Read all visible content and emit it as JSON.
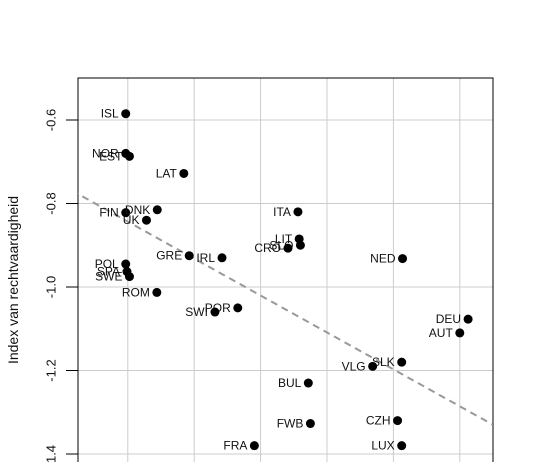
{
  "chart_data": {
    "type": "scatter",
    "title": "",
    "xlabel": "",
    "ylabel": "Index van rechtvaardigheid",
    "y_tick_labels": [
      "-0.6",
      "-0.8",
      "-1.0",
      "-1.2",
      "1.4"
    ],
    "x_range": [
      0,
      1
    ],
    "ylim": [
      -1.4,
      -0.55
    ],
    "grid": true,
    "trend_line": {
      "x0": -0.04,
      "y0": -0.755,
      "x1": 1.0,
      "y1": -1.33,
      "style": "dashed",
      "color": "#999999"
    },
    "points": [
      {
        "label": "ISL",
        "x": 0.115,
        "y": -0.585
      },
      {
        "label": "NOR",
        "x": 0.115,
        "y": -0.68
      },
      {
        "label": "EST",
        "x": 0.124,
        "y": -0.687
      },
      {
        "label": "LAT",
        "x": 0.255,
        "y": -0.728
      },
      {
        "label": "FIN",
        "x": 0.115,
        "y": -0.822
      },
      {
        "label": "DNK",
        "x": 0.191,
        "y": -0.815
      },
      {
        "label": "UK",
        "x": 0.165,
        "y": -0.84
      },
      {
        "label": "ITA",
        "x": 0.53,
        "y": -0.82
      },
      {
        "label": "LIT",
        "x": 0.533,
        "y": -0.885
      },
      {
        "label": "SLO",
        "x": 0.536,
        "y": -0.9
      },
      {
        "label": "CRO",
        "x": 0.506,
        "y": -0.907
      },
      {
        "label": "GRE",
        "x": 0.268,
        "y": -0.925
      },
      {
        "label": "IRL",
        "x": 0.347,
        "y": -0.93
      },
      {
        "label": "NED",
        "x": 0.782,
        "y": -0.932
      },
      {
        "label": "POL",
        "x": 0.115,
        "y": -0.945
      },
      {
        "label": "SPA",
        "x": 0.118,
        "y": -0.963
      },
      {
        "label": "SWE",
        "x": 0.124,
        "y": -0.975
      },
      {
        "label": "ROM",
        "x": 0.19,
        "y": -1.013
      },
      {
        "label": "POR",
        "x": 0.385,
        "y": -1.05
      },
      {
        "label": "SWI",
        "x": 0.33,
        "y": -1.06
      },
      {
        "label": "DEU",
        "x": 0.94,
        "y": -1.077
      },
      {
        "label": "AUT",
        "x": 0.92,
        "y": -1.11
      },
      {
        "label": "SLK",
        "x": 0.78,
        "y": -1.18
      },
      {
        "label": "VLG",
        "x": 0.71,
        "y": -1.19
      },
      {
        "label": "BUL",
        "x": 0.555,
        "y": -1.23
      },
      {
        "label": "CZH",
        "x": 0.77,
        "y": -1.32
      },
      {
        "label": "FWB",
        "x": 0.56,
        "y": -1.327
      },
      {
        "label": "FRA",
        "x": 0.425,
        "y": -1.38
      },
      {
        "label": "LUX",
        "x": 0.78,
        "y": -1.38
      }
    ]
  }
}
